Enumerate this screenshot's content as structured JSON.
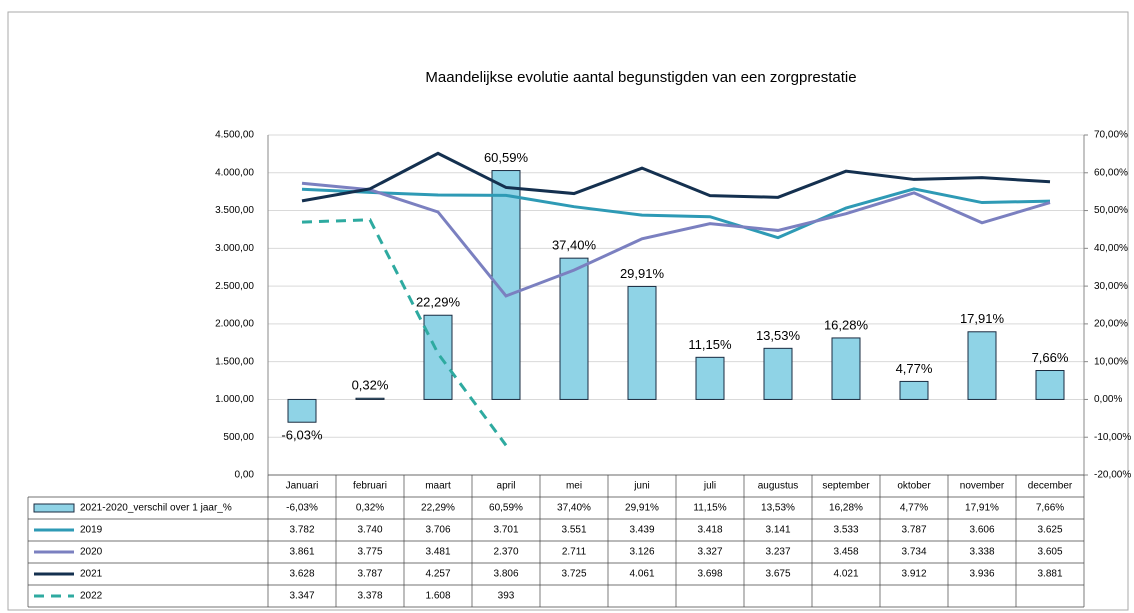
{
  "chart_data": {
    "type": "bar-line",
    "title": "Maandelijkse evolutie aantal begunstigden van een zorgprestatie",
    "categories": [
      "Januari",
      "februari",
      "maart",
      "april",
      "mei",
      "juni",
      "juli",
      "augustus",
      "september",
      "oktober",
      "november",
      "december"
    ],
    "ylim": [
      0,
      4500
    ],
    "yticks": [
      {
        "value": 0,
        "label": "0,00"
      },
      {
        "value": 500,
        "label": "500,00"
      },
      {
        "value": 1000,
        "label": "1.000,00"
      },
      {
        "value": 1500,
        "label": "1.500,00"
      },
      {
        "value": 2000,
        "label": "2.000,00"
      },
      {
        "value": 2500,
        "label": "2.500,00"
      },
      {
        "value": 3000,
        "label": "3.000,00"
      },
      {
        "value": 3500,
        "label": "3.500,00"
      },
      {
        "value": 4000,
        "label": "4.000,00"
      },
      {
        "value": 4500,
        "label": "4.500,00"
      }
    ],
    "y2lim": [
      -20,
      70
    ],
    "y2ticks": [
      {
        "value": -20,
        "label": "-20,00%"
      },
      {
        "value": -10,
        "label": "-10,00%"
      },
      {
        "value": 0,
        "label": "0,00%"
      },
      {
        "value": 10,
        "label": "10,00%"
      },
      {
        "value": 20,
        "label": "20,00%"
      },
      {
        "value": 30,
        "label": "30,00%"
      },
      {
        "value": 40,
        "label": "40,00%"
      },
      {
        "value": 50,
        "label": "50,00%"
      },
      {
        "value": 60,
        "label": "60,00%"
      },
      {
        "value": 70,
        "label": "70,00%"
      }
    ],
    "grid": true,
    "series": [
      {
        "name": "2021-2020_verschil over 1 jaar_%",
        "type": "bar",
        "axis": "y2",
        "color": "#8fd3e6",
        "values": [
          -6.03,
          0.32,
          22.29,
          60.59,
          37.4,
          29.91,
          11.15,
          13.53,
          16.28,
          4.77,
          17.91,
          7.66
        ],
        "value_labels": [
          "-6,03%",
          "0,32%",
          "22,29%",
          "60,59%",
          "37,40%",
          "29,91%",
          "11,15%",
          "13,53%",
          "16,28%",
          "4,77%",
          "17,91%",
          "7,66%"
        ]
      },
      {
        "name": "2019",
        "type": "line",
        "color": "#2e9ab5",
        "values": [
          3782,
          3740,
          3706,
          3701,
          3551,
          3439,
          3418,
          3141,
          3533,
          3787,
          3606,
          3625
        ],
        "value_labels": [
          "3.782",
          "3.740",
          "3.706",
          "3.701",
          "3.551",
          "3.439",
          "3.418",
          "3.141",
          "3.533",
          "3.787",
          "3.606",
          "3.625"
        ]
      },
      {
        "name": "2020",
        "type": "line",
        "color": "#7b80c0",
        "values": [
          3861,
          3775,
          3481,
          2370,
          2711,
          3126,
          3327,
          3237,
          3458,
          3734,
          3338,
          3605
        ],
        "value_labels": [
          "3.861",
          "3.775",
          "3.481",
          "2.370",
          "2.711",
          "3.126",
          "3.327",
          "3.237",
          "3.458",
          "3.734",
          "3.338",
          "3.605"
        ]
      },
      {
        "name": "2021",
        "type": "line",
        "color": "#14304f",
        "values": [
          3628,
          3787,
          4257,
          3806,
          3725,
          4061,
          3698,
          3675,
          4021,
          3912,
          3936,
          3881
        ],
        "value_labels": [
          "3.628",
          "3.787",
          "4.257",
          "3.806",
          "3.725",
          "4.061",
          "3.698",
          "3.675",
          "4.021",
          "3.912",
          "3.936",
          "3.881"
        ]
      },
      {
        "name": "2022",
        "type": "line",
        "dashed": true,
        "color": "#2eaaa0",
        "values": [
          3347,
          3378,
          1608,
          393,
          null,
          null,
          null,
          null,
          null,
          null,
          null,
          null
        ],
        "value_labels": [
          "3.347",
          "3.378",
          "1.608",
          "393",
          null,
          null,
          null,
          null,
          null,
          null,
          null,
          null
        ]
      }
    ]
  }
}
